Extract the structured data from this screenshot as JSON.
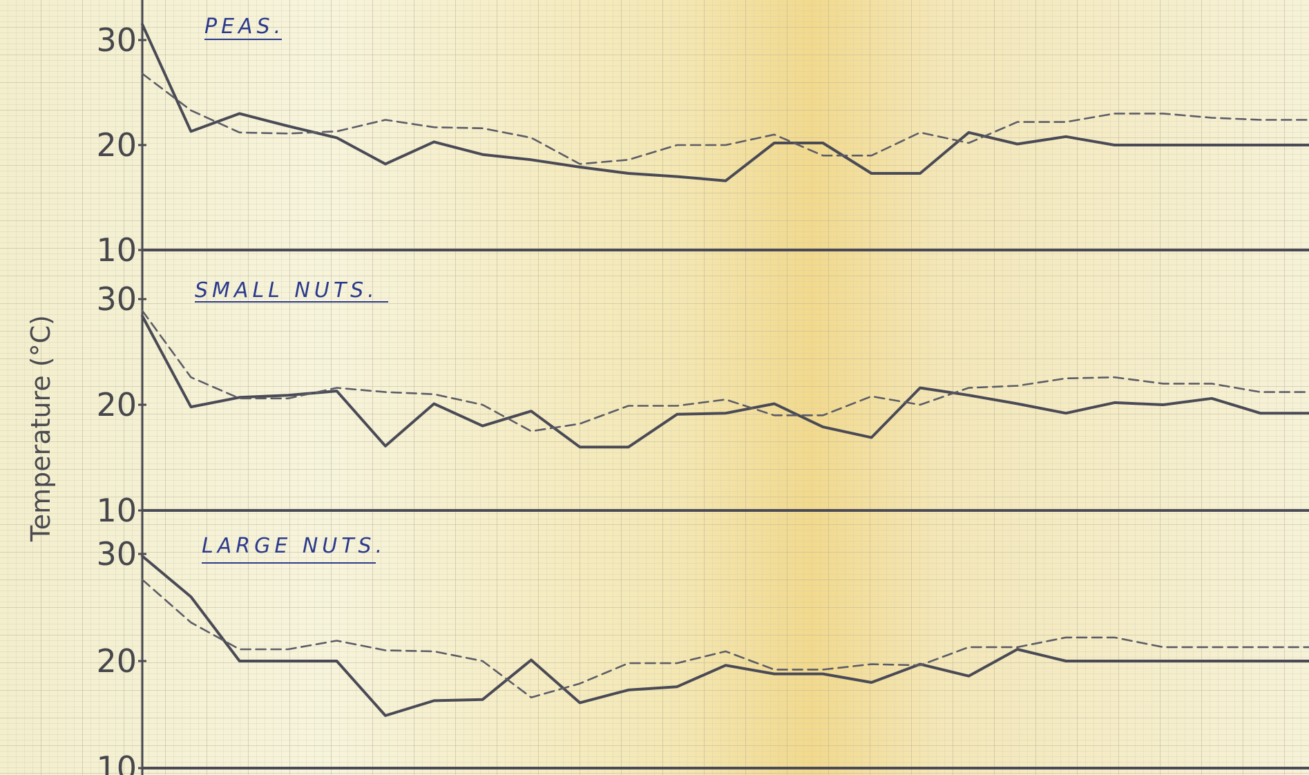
{
  "chart_data": {
    "type": "line",
    "ylabel": "Temperature (°C)",
    "xlabel": "",
    "x": [
      1,
      2,
      3,
      4,
      5,
      6,
      7,
      8,
      9,
      10,
      11,
      12,
      13,
      14,
      15,
      16,
      17,
      18,
      19,
      20,
      21,
      22,
      23,
      24,
      25
    ],
    "colors": {
      "paper": "#f6f1d2",
      "solid": "#4a4a56",
      "dashed": "#5c5c66",
      "title_ink": "#2b3a8c",
      "grid": "#c9c2a6"
    },
    "panels": [
      {
        "title": "PEAS.",
        "ylim": [
          10,
          30
        ],
        "yticks": [
          30,
          20,
          10
        ],
        "series": [
          {
            "style": "solid",
            "values": [
              31.5,
              21.3,
              23.0,
              21.8,
              20.7,
              18.2,
              20.3,
              19.1,
              18.6,
              17.9,
              17.3,
              17.0,
              16.6,
              20.2,
              20.2,
              17.3,
              17.3,
              21.2,
              20.1,
              20.8,
              20.0,
              20.0,
              20.0,
              20.0,
              20.0
            ]
          },
          {
            "style": "dashed",
            "values": [
              26.8,
              23.3,
              21.2,
              21.1,
              21.3,
              22.4,
              21.7,
              21.6,
              20.7,
              18.2,
              18.6,
              20.0,
              20.0,
              21.0,
              19.0,
              19.0,
              21.2,
              20.2,
              22.2,
              22.2,
              23.0,
              23.0,
              22.6,
              22.4,
              22.4
            ]
          }
        ]
      },
      {
        "title": "SMALL NUTS.",
        "ylim": [
          10,
          30
        ],
        "yticks": [
          30,
          20,
          10
        ],
        "series": [
          {
            "style": "solid",
            "values": [
              28.4,
              19.8,
              20.7,
              20.9,
              21.3,
              16.1,
              20.1,
              18.0,
              19.4,
              16.0,
              16.0,
              19.1,
              19.2,
              20.1,
              17.9,
              16.9,
              21.6,
              20.9,
              20.1,
              19.2,
              20.2,
              20.0,
              20.6,
              19.2,
              19.2
            ]
          },
          {
            "style": "dashed",
            "values": [
              28.9,
              22.6,
              20.6,
              20.6,
              21.6,
              21.2,
              21.0,
              20.0,
              17.5,
              18.2,
              19.9,
              19.9,
              20.5,
              19.0,
              19.0,
              20.8,
              20.0,
              21.6,
              21.8,
              22.5,
              22.6,
              22.0,
              22.0,
              21.2,
              21.2
            ]
          }
        ]
      },
      {
        "title": "LARGE NUTS.",
        "ylim": [
          10,
          30
        ],
        "yticks": [
          30,
          20,
          10
        ],
        "series": [
          {
            "style": "solid",
            "values": [
              29.8,
              26.0,
              20.0,
              20.0,
              20.0,
              14.9,
              16.3,
              16.4,
              20.1,
              16.1,
              17.3,
              17.6,
              19.6,
              18.8,
              18.8,
              18.0,
              19.7,
              18.6,
              21.1,
              20.0,
              20.0,
              20.0,
              20.0,
              20.0,
              20.0
            ]
          },
          {
            "style": "dashed",
            "values": [
              27.6,
              23.6,
              21.1,
              21.1,
              21.9,
              21.0,
              20.9,
              20.0,
              16.6,
              17.9,
              19.8,
              19.8,
              20.9,
              19.2,
              19.2,
              19.7,
              19.6,
              21.3,
              21.3,
              22.2,
              22.2,
              21.3,
              21.3,
              21.3,
              21.3
            ]
          }
        ]
      }
    ]
  }
}
